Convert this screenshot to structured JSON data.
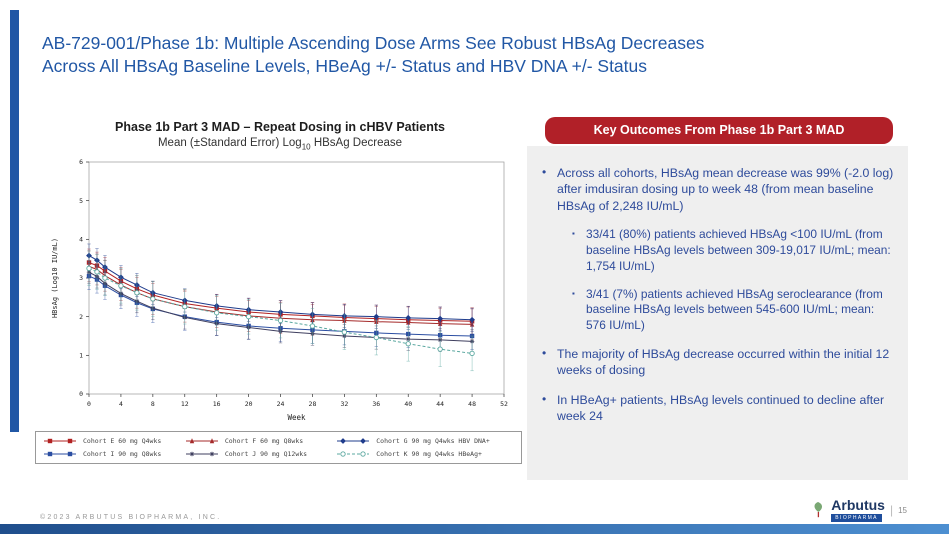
{
  "title": "AB-729-001/Phase 1b: Multiple Ascending Dose Arms See Robust HBsAg Decreases\nAcross All HBsAg Baseline Levels, HBeAg +/- Status and HBV DNA +/- Status",
  "colors": {
    "accent_blue": "#2157A5",
    "badge_red": "#B12028",
    "panel_gray": "#EFEFEF",
    "bullet_navy": "#2E4B9B"
  },
  "chart": {
    "title": "Phase 1b Part 3 MAD – Repeat Dosing in cHBV Patients",
    "subtitle_prefix": "Mean (±Standard Error) Log",
    "subtitle_sub": "10",
    "subtitle_suffix": " HBsAg Decrease"
  },
  "chart_data": {
    "type": "line",
    "title": "Phase 1b Part 3 MAD – Repeat Dosing in cHBV Patients",
    "xlabel": "Week",
    "ylabel": "HBsAg (Log10 IU/mL)",
    "xlim": [
      0,
      52
    ],
    "ylim": [
      0,
      6
    ],
    "xticks": [
      0,
      4,
      8,
      12,
      16,
      20,
      24,
      28,
      32,
      36,
      40,
      44,
      48,
      52
    ],
    "yticks": [
      0,
      1,
      2,
      3,
      4,
      5,
      6
    ],
    "grid": false,
    "legend_position": "bottom",
    "error_bars": true,
    "x": [
      0,
      1,
      2,
      4,
      6,
      8,
      12,
      16,
      20,
      24,
      28,
      32,
      36,
      40,
      44,
      48
    ],
    "series": [
      {
        "name": "Cohort E 60 mg Q4wks",
        "color": "#B22222",
        "marker": "square",
        "dash": false,
        "se": 0.35,
        "values": [
          3.4,
          3.32,
          3.18,
          2.92,
          2.72,
          2.56,
          2.34,
          2.22,
          2.12,
          2.06,
          2.02,
          1.98,
          1.95,
          1.92,
          1.9,
          1.88
        ]
      },
      {
        "name": "Cohort F 60 mg Q8wks",
        "color": "#A52A2A",
        "marker": "triangle",
        "dash": false,
        "se": 0.4,
        "values": [
          3.3,
          3.22,
          3.06,
          2.82,
          2.62,
          2.46,
          2.26,
          2.12,
          2.02,
          1.96,
          1.92,
          1.9,
          1.87,
          1.85,
          1.82,
          1.8
        ]
      },
      {
        "name": "Cohort G 90 mg Q4wks HBV DNA+",
        "color": "#1F3C8C",
        "marker": "diamond",
        "dash": false,
        "se": 0.3,
        "values": [
          3.58,
          3.46,
          3.28,
          3.02,
          2.82,
          2.62,
          2.42,
          2.28,
          2.18,
          2.12,
          2.06,
          2.02,
          2.0,
          1.97,
          1.95,
          1.92
        ]
      },
      {
        "name": "Cohort I 90 mg Q8wks",
        "color": "#2B4EA2",
        "marker": "square",
        "dash": false,
        "se": 0.35,
        "values": [
          3.05,
          2.96,
          2.8,
          2.56,
          2.36,
          2.2,
          2.0,
          1.86,
          1.76,
          1.7,
          1.66,
          1.62,
          1.58,
          1.55,
          1.52,
          1.5
        ]
      },
      {
        "name": "Cohort J 90 mg Q12wks",
        "color": "#3F3F5F",
        "marker": "asterisk",
        "dash": false,
        "se": 0.3,
        "values": [
          3.15,
          3.04,
          2.86,
          2.6,
          2.4,
          2.22,
          1.98,
          1.82,
          1.72,
          1.62,
          1.56,
          1.5,
          1.46,
          1.42,
          1.4,
          1.36
        ]
      },
      {
        "name": "Cohort K 90 mg Q4wks HBeAg+",
        "color": "#5BA8A0",
        "marker": "circle-open",
        "dash": true,
        "se": 0.45,
        "values": [
          3.25,
          3.16,
          3.0,
          2.8,
          2.62,
          2.46,
          2.26,
          2.1,
          2.0,
          1.9,
          1.76,
          1.6,
          1.46,
          1.3,
          1.16,
          1.05
        ]
      }
    ]
  },
  "panel": {
    "header": "Key Outcomes From Phase 1b Part 3 MAD",
    "bullets": [
      {
        "level": 1,
        "marker": "•",
        "text": "Across all cohorts, HBsAg mean decrease was 99% (-2.0 log) after imdusiran dosing up to week 48 (from mean baseline HBsAg of 2,248 IU/mL)"
      },
      {
        "level": 2,
        "marker": "▪",
        "text": "33/41 (80%) patients achieved HBsAg <100 IU/mL (from baseline HBsAg levels between 309-19,017 IU/mL; mean: 1,754 IU/mL)"
      },
      {
        "level": 2,
        "marker": "▪",
        "text": "3/41 (7%) patients achieved HBsAg seroclearance (from baseline HBsAg levels between 545-600 IU/mL; mean: 576 IU/mL)"
      },
      {
        "level": 1,
        "marker": "•",
        "text": "The majority of HBsAg decrease occurred within the initial 12 weeks of dosing"
      },
      {
        "level": 1,
        "marker": "•",
        "text": "In HBeAg+ patients, HBsAg levels continued to decline after week 24"
      }
    ]
  },
  "footer": {
    "copyright": "©2023 ARBUTUS BIOPHARMA, INC.",
    "logo_text": "Arbutus",
    "logo_subtext": "BIOPHARMA",
    "divider": "|",
    "page_number": "15"
  }
}
